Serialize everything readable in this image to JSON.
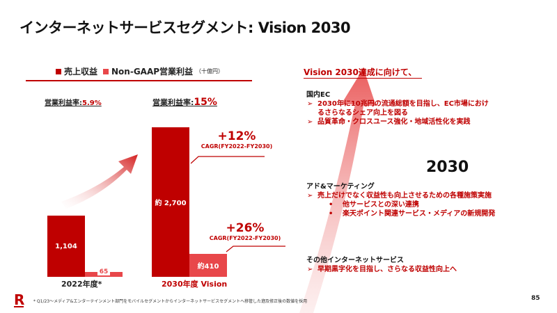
{
  "title": "インターネットサービスセグメント: Vision 2030",
  "legend": {
    "revenue": "売上収益",
    "op": "Non-GAAP営業利益",
    "unit": "（十億円）"
  },
  "colors": {
    "revenue": "#bf0000",
    "op": "#e8474a"
  },
  "margins": [
    {
      "label": "営業利益率:",
      "value": "5.9%"
    },
    {
      "label": "営業利益率:",
      "value": "15%"
    }
  ],
  "chart_data": {
    "type": "bar",
    "categories": [
      "2022年度*",
      "2030年度 Vision"
    ],
    "series": [
      {
        "name": "売上収益",
        "values": [
          1104,
          2700
        ],
        "labels": [
          "1,104",
          "約 2,700"
        ]
      },
      {
        "name": "Non-GAAP営業利益",
        "values": [
          65,
          410
        ],
        "labels": [
          "65",
          "約410"
        ]
      }
    ],
    "ylim": [
      0,
      2800
    ],
    "unit": "十億円",
    "annotations": [
      {
        "value": "+12%",
        "label": "CAGR(FY2022-FY2030)"
      },
      {
        "value": "+26%",
        "label": "CAGR(FY2022-FY2030)"
      }
    ]
  },
  "right": {
    "heading": "Vision 2030達成に向けて、",
    "big_label": "2030",
    "sections": [
      {
        "title": "国内EC",
        "lines": [
          {
            "bullet": "➢",
            "text": "2030年に10兆円の流通総額を目指し、EC市場におけ"
          },
          {
            "bullet": "",
            "text": "るさらなるシェア向上を図る"
          },
          {
            "bullet": "➢",
            "text": "品質革命・クロスユース強化・地域活性化を実践"
          }
        ]
      },
      {
        "title": "アド&マーケティング",
        "lines": [
          {
            "bullet": "➢",
            "text": "売上だけでなく収益性も向上させるための各種施策実施"
          },
          {
            "bullet": "•",
            "text": "他サービスとの深い連携"
          },
          {
            "bullet": "•",
            "text": "楽天ポイント関連サービス・メディアの新規開発"
          }
        ]
      },
      {
        "title": "その他インターネットサービス",
        "lines": [
          {
            "bullet": "➢",
            "text": "早期黒字化を目指し、さらなる収益性向上へ"
          }
        ]
      }
    ]
  },
  "footer": {
    "logo": "R",
    "note": "* Q1/23～メディア&エンターテインメント部門をモバイルセグメントからインターネットサービスセグメントへ移管した遡及修正後の数値を採用",
    "page": "85"
  }
}
